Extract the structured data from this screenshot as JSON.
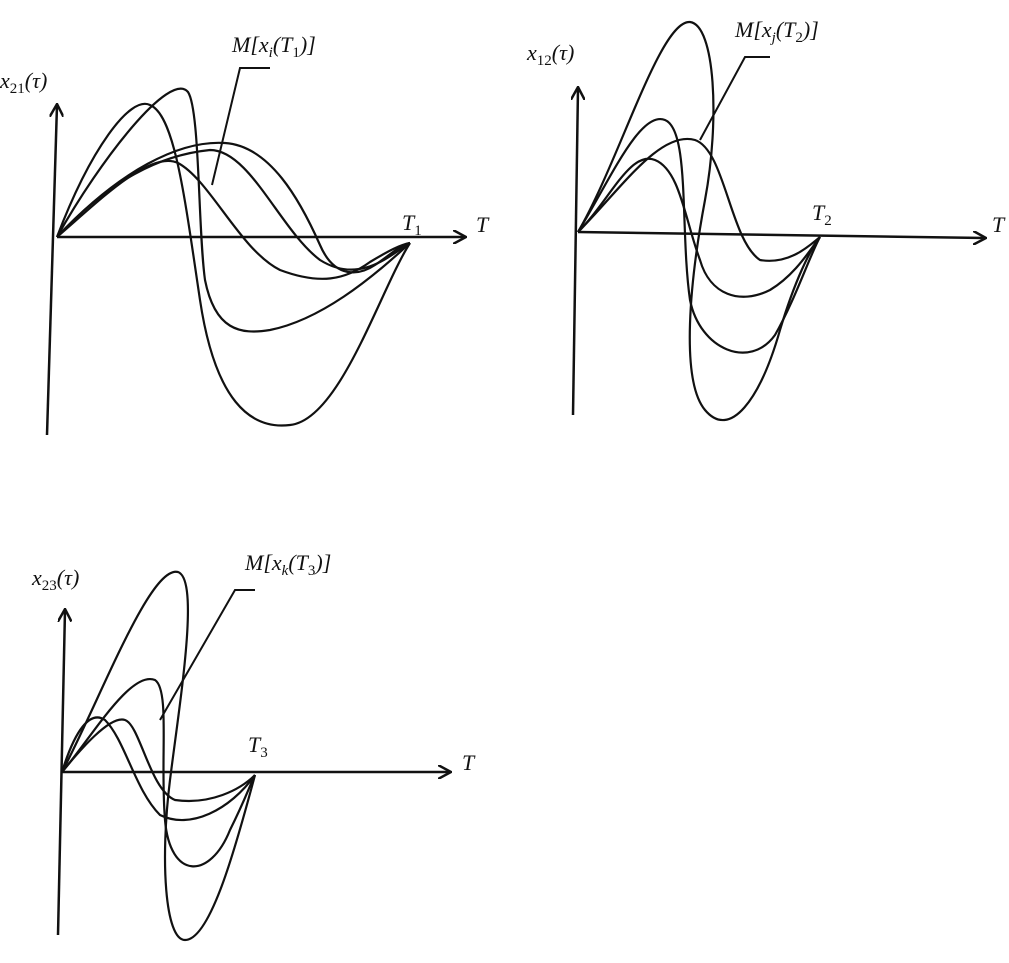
{
  "panels": [
    {
      "y_label": [
        "x",
        "21",
        "(τ)"
      ],
      "x_label": "T",
      "end_label": [
        "T",
        "1"
      ],
      "mean_label": [
        "M[x",
        "i",
        "(T",
        "1",
        ")]"
      ]
    },
    {
      "y_label": [
        "x",
        "12",
        "(τ)"
      ],
      "x_label": "T",
      "end_label": [
        "T",
        "2"
      ],
      "mean_label": [
        "M[x",
        "j",
        "(T",
        "2",
        ")]"
      ]
    },
    {
      "y_label": [
        "x",
        "23",
        "(τ)"
      ],
      "x_label": "T",
      "end_label": [
        "T",
        "3"
      ],
      "mean_label": [
        "M[x",
        "k",
        "(T",
        "3",
        ")]"
      ]
    }
  ]
}
